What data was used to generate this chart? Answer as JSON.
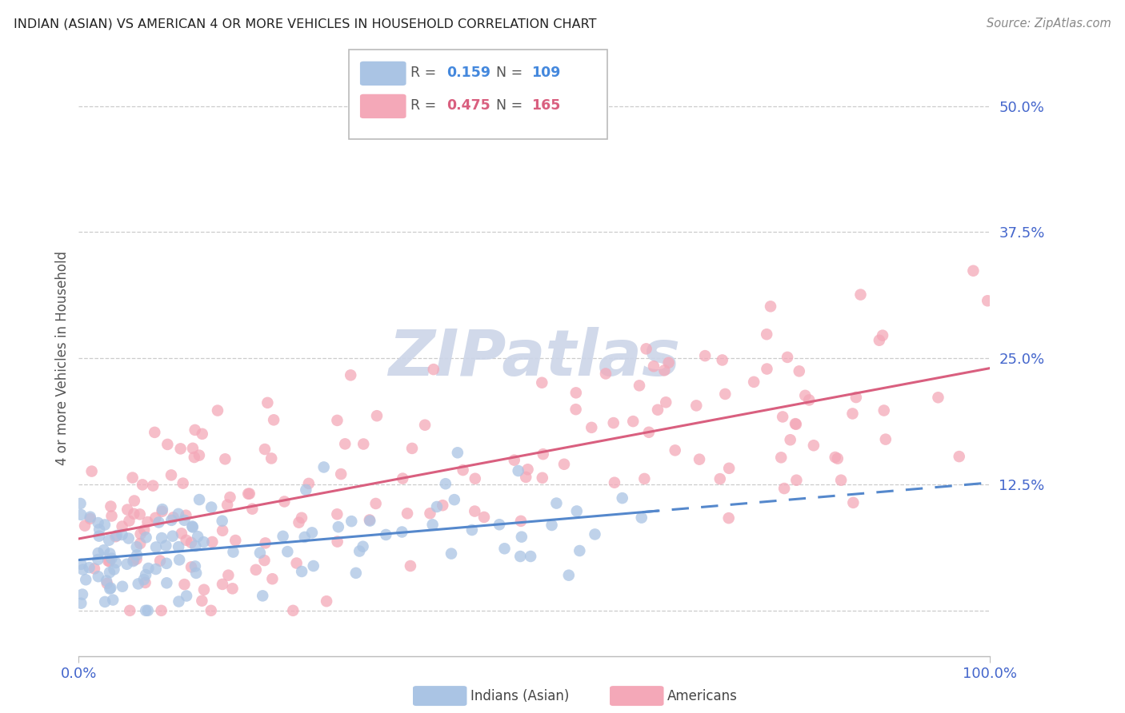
{
  "title": "INDIAN (ASIAN) VS AMERICAN 4 OR MORE VEHICLES IN HOUSEHOLD CORRELATION CHART",
  "source": "Source: ZipAtlas.com",
  "ylabel": "4 or more Vehicles in Household",
  "legend_indian_R": "0.159",
  "legend_indian_N": "109",
  "legend_american_R": "0.475",
  "legend_american_N": "165",
  "color_indian": "#aac4e4",
  "color_american": "#f4a8b8",
  "color_indian_line": "#5588cc",
  "color_american_line": "#d95f7f",
  "color_indian_text": "#4488dd",
  "color_american_text": "#d95f7f",
  "color_ytick": "#4466cc",
  "color_xtick": "#4466cc",
  "color_title": "#222222",
  "color_source": "#888888",
  "color_grid": "#cccccc",
  "color_watermark": "#ccd5e8",
  "color_ylabel": "#555555",
  "xmin": 0.0,
  "xmax": 1.0,
  "ymin": -0.045,
  "ymax": 0.545,
  "ytick_vals": [
    0.0,
    0.125,
    0.25,
    0.375,
    0.5
  ],
  "ytick_labels": [
    "",
    "12.5%",
    "25.0%",
    "37.5%",
    "50.0%"
  ]
}
